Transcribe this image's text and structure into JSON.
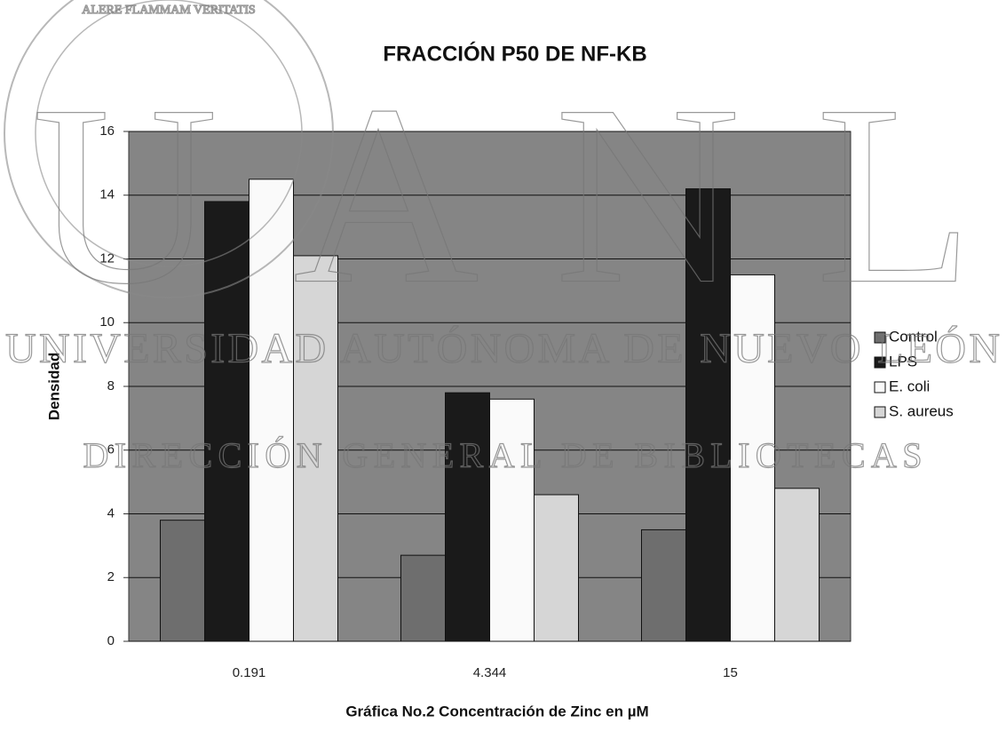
{
  "chart_data": {
    "type": "bar",
    "title": "FRACCIÓN P50  DE  NF-KB",
    "x_label": "Gráfica No.2  Concentración de Zinc en µM",
    "y_label": "Densidad",
    "categories": [
      "0.191",
      "4.344",
      "15"
    ],
    "series": [
      {
        "name": "Control",
        "color": "#6e6e6e",
        "values": [
          3.8,
          2.7,
          3.5
        ]
      },
      {
        "name": "LPS",
        "color": "#1a1a1a",
        "values": [
          13.8,
          7.8,
          14.2
        ]
      },
      {
        "name": "E. coli",
        "color": "#fafafa",
        "values": [
          14.5,
          7.6,
          11.5
        ]
      },
      {
        "name": "S. aureus",
        "color": "#d6d6d6",
        "values": [
          12.1,
          4.6,
          4.8
        ]
      }
    ],
    "ylim": [
      0,
      16
    ],
    "yticks": [
      0,
      2,
      4,
      6,
      8,
      10,
      12,
      14,
      16
    ],
    "grid": true,
    "legend": "right",
    "plot_background": "#858585"
  },
  "watermark": {
    "logo": "UANL",
    "line1": "UNIVERSIDAD AUTÓNOMA DE NUEVO LEÓN",
    "line2": "DIRECCIÓN GENERAL DE BIBLIOTECAS",
    "seal": "ALERE FLAMMAM VERITATIS"
  }
}
